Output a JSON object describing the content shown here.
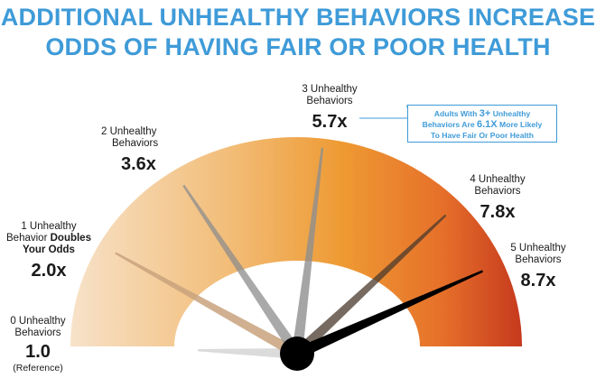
{
  "title_line1": "ADDITIONAL UNHEALTHY BEHAVIORS INCREASE",
  "title_line2": "ODDS OF HAVING FAIR OR POOR HEALTH",
  "callout": {
    "pre": "Adults With",
    "highlight_count": "3+",
    "mid1": "Unhealthy",
    "mid2": "Behaviors Are",
    "highlight_odds": "6.1X",
    "post1": "More Likely",
    "post2": "To Have Fair Or Poor Health"
  },
  "colors": {
    "title": "#3f9bd8",
    "gauge_light": "#f7e0c6",
    "gauge_mid": "#ef9a2e",
    "gauge_dark": "#c73a1e",
    "needle_dark": "#000000"
  },
  "chart_data": {
    "type": "gauge",
    "title": "ADDITIONAL UNHEALTHY BEHAVIORS INCREASE ODDS OF HAVING FAIR OR POOR HEALTH",
    "range": [
      1.0,
      8.7
    ],
    "categories": [
      {
        "count": 0,
        "line1": "0 Unhealthy",
        "line2": "Behaviors",
        "value_label": "1.0",
        "note": "(Reference)",
        "value": 1.0
      },
      {
        "count": 1,
        "line1": "1 Unhealthy",
        "line2a": "Behavior",
        "line2b": "Doubles",
        "line3": "Your Odds",
        "value_label": "2.0x",
        "value": 2.0
      },
      {
        "count": 2,
        "line1": "2 Unhealthy",
        "line2": "Behaviors",
        "value_label": "3.6x",
        "value": 3.6
      },
      {
        "count": 3,
        "line1": "3 Unhealthy",
        "line2": "Behaviors",
        "value_label": "5.7x",
        "value": 5.7
      },
      {
        "count": 4,
        "line1": "4 Unhealthy",
        "line2": "Behaviors",
        "value_label": "7.8x",
        "value": 7.8
      },
      {
        "count": 5,
        "line1": "5 Unhealthy",
        "line2": "Behaviors",
        "value_label": "8.7x",
        "value": 8.7
      }
    ]
  }
}
